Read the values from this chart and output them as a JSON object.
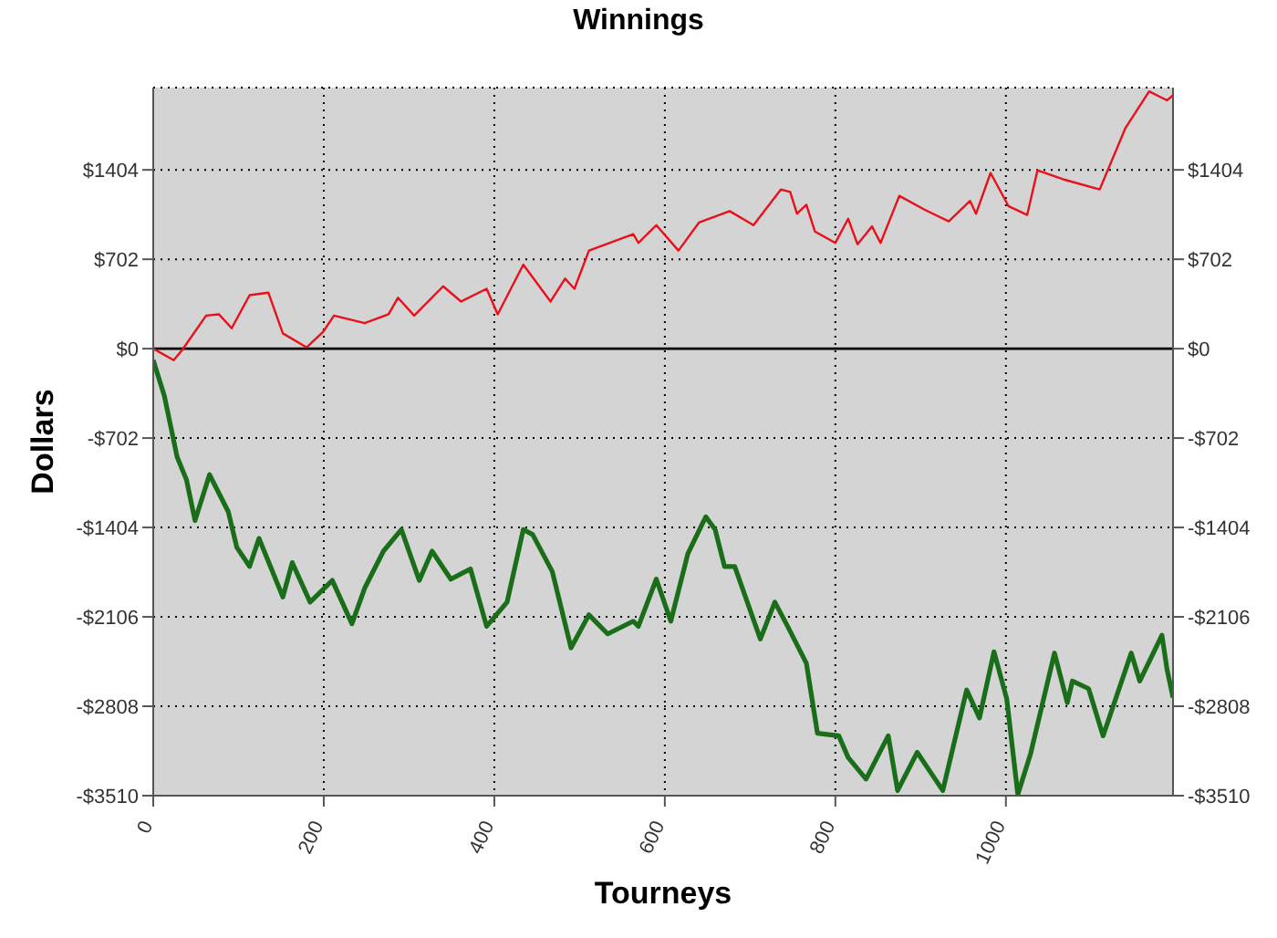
{
  "chart_data": {
    "type": "line",
    "title": "Winnings",
    "xlabel": "Tourneys",
    "ylabel": "Dollars",
    "xlim": [
      0,
      1196
    ],
    "xticks": [
      0,
      200,
      400,
      600,
      800,
      1000
    ],
    "ylim": [
      -3510,
      2050
    ],
    "yticks": [
      {
        "value": 1404,
        "label": "$1404"
      },
      {
        "value": 702,
        "label": "$702"
      },
      {
        "value": 0,
        "label": "$0"
      },
      {
        "value": -702,
        "label": "-$702"
      },
      {
        "value": -1404,
        "label": "-$1404"
      },
      {
        "value": -2106,
        "label": "-$2106"
      },
      {
        "value": -2808,
        "label": "-$2808"
      },
      {
        "value": -3510,
        "label": "-$3510"
      }
    ],
    "y2lim": [
      -3510,
      2050
    ],
    "y2ticks": [
      {
        "value": 1404,
        "label": "$1404"
      },
      {
        "value": 702,
        "label": "$702"
      },
      {
        "value": 0,
        "label": "$0"
      },
      {
        "value": -702,
        "label": "-$702"
      },
      {
        "value": -1404,
        "label": "-$1404"
      },
      {
        "value": -2106,
        "label": "-$2106"
      },
      {
        "value": -2808,
        "label": "-$2808"
      },
      {
        "value": -3510,
        "label": "-$3510"
      }
    ],
    "grid": true,
    "marker": "none",
    "line_style": "solid",
    "ref_lines": [
      {
        "axis": "y",
        "value": 0,
        "color": "#000000",
        "line_style": "solid"
      }
    ],
    "series": [
      {
        "color": "#e8101a",
        "x": [
          0,
          24,
          34,
          62,
          77,
          92,
          113,
          135,
          152,
          180,
          199,
          212,
          248,
          276,
          287,
          306,
          340,
          361,
          391,
          404,
          434,
          466,
          483,
          494,
          511,
          563,
          569,
          590,
          616,
          640,
          676,
          704,
          736,
          747,
          755,
          766,
          776,
          800,
          815,
          826,
          843,
          853,
          875,
          905,
          933,
          958,
          965,
          982,
          1003,
          1025,
          1037,
          1067,
          1110,
          1140,
          1168,
          1189,
          1196
        ],
        "values": [
          0,
          -90,
          -10,
          260,
          270,
          160,
          420,
          440,
          120,
          10,
          130,
          260,
          200,
          270,
          400,
          260,
          490,
          370,
          470,
          270,
          660,
          370,
          550,
          470,
          770,
          900,
          830,
          970,
          770,
          990,
          1080,
          970,
          1250,
          1230,
          1060,
          1130,
          920,
          830,
          1020,
          820,
          960,
          830,
          1200,
          1090,
          1000,
          1160,
          1060,
          1380,
          1120,
          1050,
          1400,
          1330,
          1250,
          1730,
          2020,
          1950,
          1990
        ]
      },
      {
        "color": "#1a6e1a",
        "x": [
          0,
          13,
          28,
          39,
          49,
          66,
          88,
          98,
          113,
          124,
          152,
          163,
          184,
          210,
          233,
          248,
          270,
          291,
          312,
          327,
          349,
          372,
          391,
          415,
          434,
          445,
          468,
          490,
          511,
          533,
          563,
          569,
          590,
          607,
          627,
          648,
          659,
          670,
          682,
          712,
          729,
          744,
          766,
          779,
          804,
          815,
          836,
          862,
          873,
          896,
          926,
          954,
          969,
          986,
          1001,
          1014,
          1029,
          1057,
          1072,
          1078,
          1097,
          1114,
          1147,
          1157,
          1183,
          1189,
          1196
        ],
        "values": [
          -90,
          -370,
          -850,
          -1030,
          -1350,
          -990,
          -1280,
          -1560,
          -1710,
          -1490,
          -1950,
          -1680,
          -1990,
          -1820,
          -2160,
          -1880,
          -1590,
          -1420,
          -1820,
          -1590,
          -1810,
          -1730,
          -2180,
          -1990,
          -1420,
          -1460,
          -1750,
          -2350,
          -2090,
          -2240,
          -2140,
          -2180,
          -1810,
          -2140,
          -1610,
          -1320,
          -1420,
          -1710,
          -1710,
          -2280,
          -1990,
          -2180,
          -2470,
          -3020,
          -3040,
          -3210,
          -3380,
          -3040,
          -3470,
          -3170,
          -3470,
          -2680,
          -2900,
          -2380,
          -2750,
          -3500,
          -3180,
          -2390,
          -2780,
          -2610,
          -2670,
          -3040,
          -2390,
          -2610,
          -2250,
          -2520,
          -2740
        ]
      }
    ]
  }
}
